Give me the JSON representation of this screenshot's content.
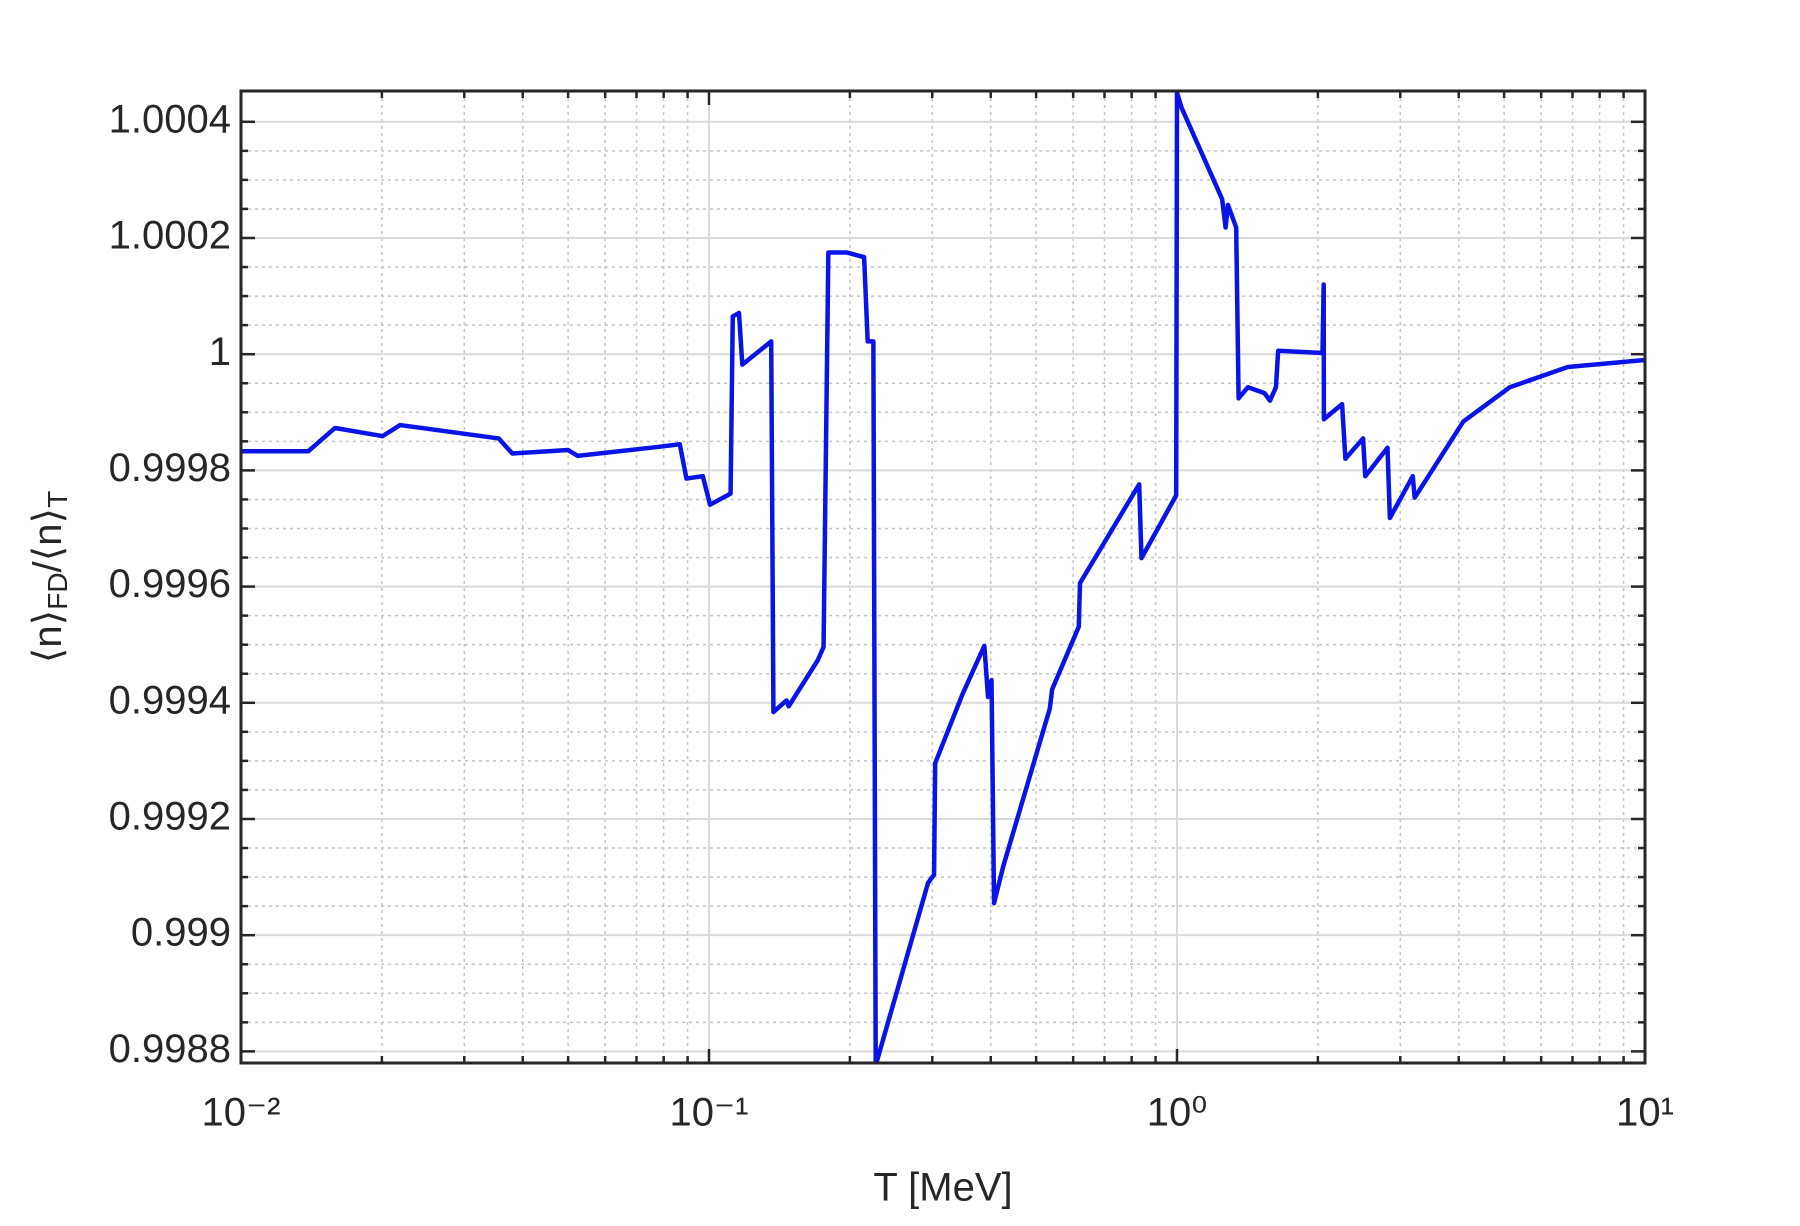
{
  "chart_data": {
    "type": "line",
    "xlabel": "T [MeV]",
    "ylabel": "⟨n⟩FD/⟨n⟩T",
    "xscale": "log",
    "grid": true,
    "color": "#0a14e6",
    "xlim": [
      0.01,
      10
    ],
    "xticks": [
      {
        "value": 0.01,
        "label": "10⁻²"
      },
      {
        "value": 0.1,
        "label": "10⁻¹"
      },
      {
        "value": 1,
        "label": "10⁰"
      },
      {
        "value": 10,
        "label": "10¹"
      }
    ],
    "ylim": [
      0.99878,
      1.000453
    ],
    "yticks": [
      0.9988,
      0.999,
      0.9992,
      0.9994,
      0.9996,
      0.9998,
      1,
      1.0002,
      1.0004
    ],
    "x": [
      0.01,
      0.01393,
      0.01588,
      0.02007,
      0.02188,
      0.03553,
      0.038,
      0.05,
      0.0524,
      0.079,
      0.0866,
      0.0895,
      0.097,
      0.1005,
      0.1112,
      0.1124,
      0.1159,
      0.1178,
      0.1358,
      0.1373,
      0.1464,
      0.148,
      0.1707,
      0.1757,
      0.1799,
      0.1973,
      0.2145,
      0.2183,
      0.2245,
      0.2271,
      0.2938,
      0.3026,
      0.3043,
      0.3477,
      0.3876,
      0.3946,
      0.4015,
      0.4065,
      0.4258,
      0.5348,
      0.5411,
      0.6168,
      0.6205,
      0.8302,
      0.8396,
      0.996,
      1.0,
      1.023,
      1.2485,
      1.27,
      1.285,
      1.338,
      1.354,
      1.417,
      1.538,
      1.58,
      1.627,
      1.645,
      2.046,
      2.058,
      2.06,
      2.253,
      2.29,
      2.498,
      2.525,
      2.817,
      2.85,
      3.19,
      3.22,
      4.09,
      5.14,
      6.84,
      10
    ],
    "values": [
      0.999833,
      0.999833,
      0.999873,
      0.999859,
      0.999878,
      0.999855,
      0.999829,
      0.999835,
      0.999825,
      0.999841,
      0.999845,
      0.999786,
      0.99979,
      0.999741,
      0.99976,
      1.000065,
      1.000071,
      0.999982,
      1.000022,
      0.999384,
      0.999404,
      0.999394,
      0.999473,
      0.999496,
      1.000175,
      1.000175,
      1.000167,
      1.000022,
      1.000022,
      0.998776,
      0.99909,
      0.999104,
      0.999296,
      0.999414,
      0.999498,
      0.99941,
      0.999439,
      0.999055,
      0.99912,
      0.99939,
      0.999423,
      0.999531,
      0.999606,
      0.999776,
      0.999649,
      0.999757,
      1.00045,
      1.000424,
      1.000267,
      1.000218,
      1.000257,
      1.000218,
      0.999924,
      0.999943,
      0.999933,
      0.99992,
      0.999943,
      1.000006,
      1.000002,
      1.00012,
      0.999888,
      0.999914,
      0.99982,
      0.999855,
      0.99979,
      0.999839,
      0.999718,
      0.99979,
      0.999753,
      0.999884,
      0.999943,
      0.999978,
      0.99999
    ]
  }
}
